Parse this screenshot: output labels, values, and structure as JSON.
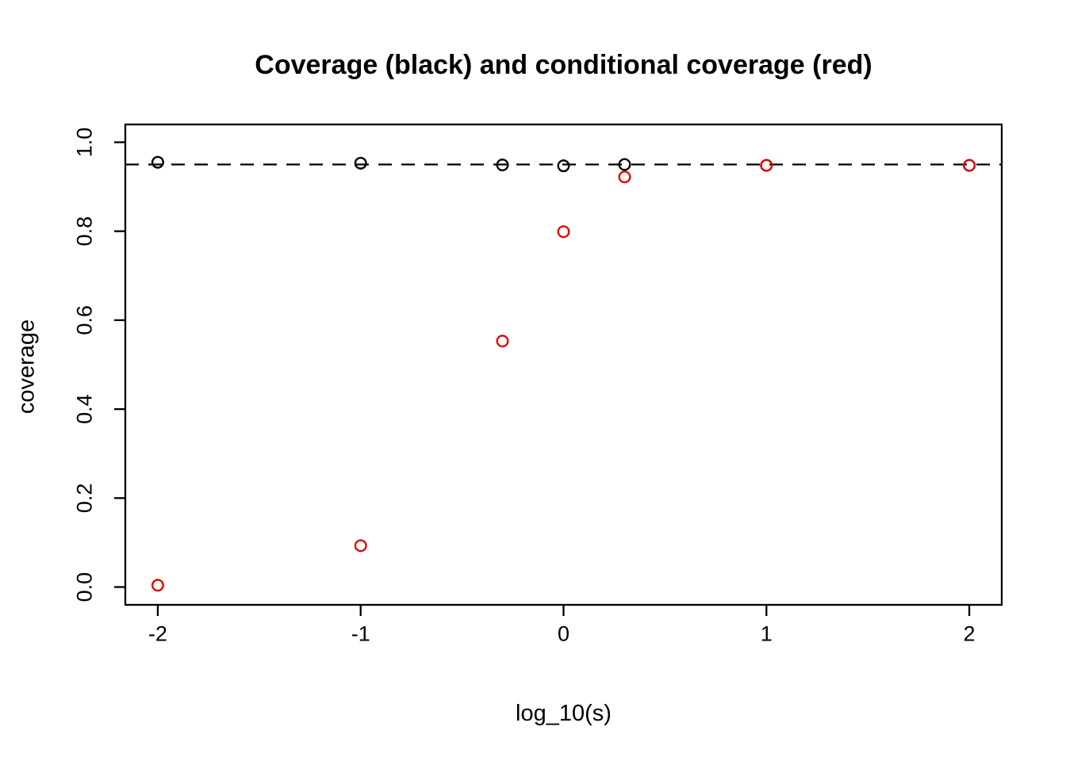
{
  "chart_data": {
    "type": "scatter",
    "title": "Coverage (black) and conditional coverage (red)",
    "xlabel": "log_10(s)",
    "ylabel": "coverage",
    "grid": false,
    "legend": "none (series identified by color in title)",
    "xlim": [
      -2.16,
      2.16
    ],
    "ylim": [
      -0.04,
      1.04
    ],
    "x_ticks": {
      "values": [
        -2,
        -1,
        0,
        1,
        2
      ],
      "labels": [
        "-2",
        "-1",
        "0",
        "1",
        "2"
      ]
    },
    "y_ticks": {
      "values": [
        0.0,
        0.2,
        0.4,
        0.6,
        0.8,
        1.0
      ],
      "labels": [
        "0.0",
        "0.2",
        "0.4",
        "0.6",
        "0.8",
        "1.0"
      ]
    },
    "reference_line": {
      "y": 0.95,
      "style": "dashed",
      "color": "#000000"
    },
    "x": [
      -2,
      -1,
      -0.301,
      0,
      0.301,
      1,
      2
    ],
    "series": [
      {
        "name": "coverage",
        "slug": "black",
        "color": "#000000",
        "marker": "open-circle",
        "values": [
          0.955,
          0.953,
          0.949,
          0.947,
          0.95,
          0.948,
          0.948
        ]
      },
      {
        "name": "conditional coverage",
        "slug": "red",
        "color": "#e80000",
        "marker": "open-circle",
        "values": [
          0.004,
          0.093,
          0.553,
          0.799,
          0.922,
          0.948,
          0.948
        ]
      }
    ],
    "colors": {
      "foreground": "#000000",
      "background": "#ffffff",
      "accent_red": "#e80000"
    }
  }
}
